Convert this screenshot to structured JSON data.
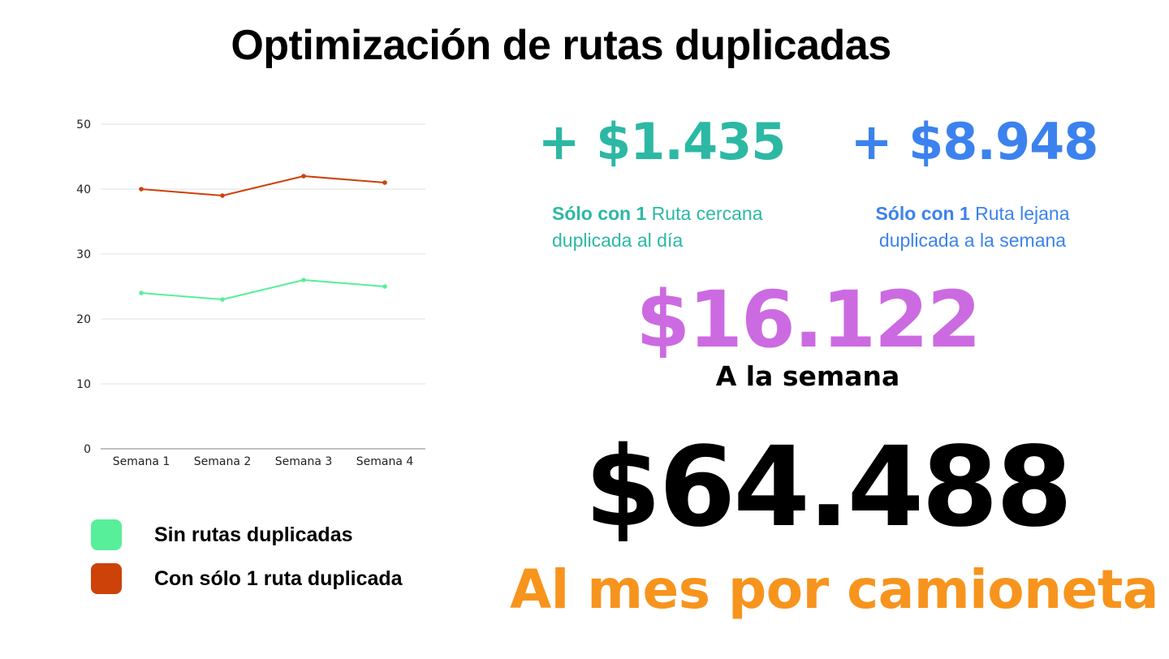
{
  "title": "Optimización de rutas duplicadas",
  "chart_data": {
    "type": "line",
    "categories": [
      "Semana 1",
      "Semana 2",
      "Semana 3",
      "Semana 4"
    ],
    "series": [
      {
        "name": "Sin rutas duplicadas",
        "values": [
          24,
          23,
          26,
          25
        ],
        "color": "#58ef9a"
      },
      {
        "name": "Con sólo 1 ruta duplicada",
        "values": [
          40,
          39,
          42,
          41
        ],
        "color": "#cc4209"
      }
    ],
    "y_ticks": [
      0,
      10,
      20,
      30,
      40,
      50
    ],
    "ylim": [
      0,
      50
    ],
    "grid": true,
    "legend_position": "bottom-left"
  },
  "legend": [
    {
      "label": "Sin rutas duplicadas",
      "color": "#58ef9a"
    },
    {
      "label": "Con sólo 1 ruta duplicada",
      "color": "#cc4209"
    }
  ],
  "stats": {
    "near": {
      "value": "+ $1.435",
      "desc_bold": "Sólo con 1",
      "desc_line1": " Ruta cercana",
      "desc_line2": "duplicada al día",
      "color": "#2db8a4"
    },
    "far": {
      "value": "+ $8.948",
      "desc_bold": "Sólo con 1",
      "desc_line1": " Ruta lejana",
      "desc_line2": "duplicada a la semana",
      "color": "#3c82ee"
    },
    "weekly": {
      "value": "$16.122",
      "label": "A la semana",
      "color": "#cc6ae2"
    },
    "monthly": {
      "value": "$64.488",
      "label": "Al mes por camioneta",
      "label_color": "#f7941d"
    }
  }
}
